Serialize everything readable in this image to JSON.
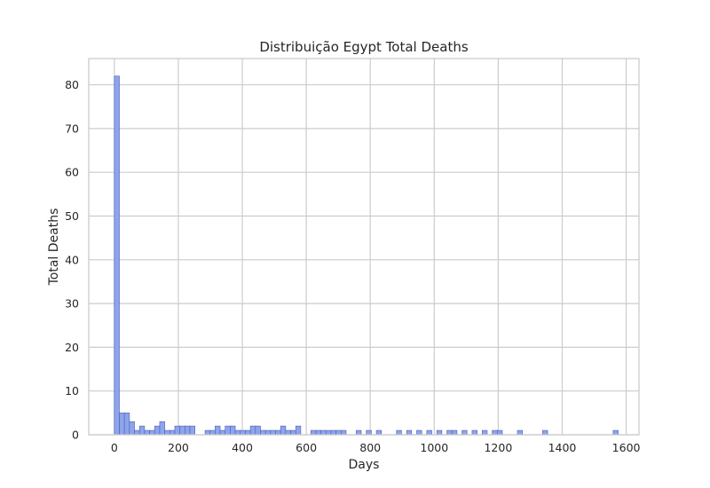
{
  "chart_data": {
    "type": "bar",
    "title": "Distribuição Egypt Total Deaths",
    "xlabel": "Days",
    "ylabel": "Total Deaths",
    "xlim": [
      -80,
      1640
    ],
    "ylim": [
      0,
      86
    ],
    "xticks": [
      "0",
      "200",
      "400",
      "600",
      "800",
      "1000",
      "1200",
      "1400",
      "1600"
    ],
    "yticks": [
      "0",
      "10",
      "20",
      "30",
      "40",
      "50",
      "60",
      "70",
      "80"
    ],
    "grid": true,
    "bar_color": "#8fa4ea",
    "bar_edge_color": "#4a5fc1",
    "bin_width": 15.75,
    "bin_start": 0,
    "bin_counts": [
      82,
      5,
      5,
      3,
      1,
      2,
      1,
      1,
      2,
      3,
      1,
      1,
      2,
      2,
      2,
      2,
      0,
      0,
      1,
      1,
      2,
      1,
      2,
      2,
      1,
      1,
      1,
      2,
      2,
      1,
      1,
      1,
      1,
      2,
      1,
      1,
      2,
      0,
      0,
      1,
      1,
      1,
      1,
      1,
      1,
      1,
      0,
      0,
      1,
      0,
      1,
      0,
      1,
      0,
      0,
      0,
      1,
      0,
      1,
      0,
      1,
      0,
      1,
      0,
      1,
      0,
      1,
      1,
      0,
      1,
      0,
      1,
      0,
      1,
      0,
      1,
      1,
      0,
      0,
      0,
      1,
      0,
      0,
      0,
      0,
      1,
      0,
      0,
      0,
      0,
      0,
      0,
      0,
      0,
      0,
      0,
      0,
      0,
      0,
      1
    ]
  }
}
